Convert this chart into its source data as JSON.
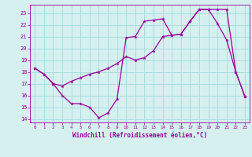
{
  "xlabel": "Windchill (Refroidissement éolien,°C)",
  "bg_color": "#d6f0f0",
  "line_color": "#990099",
  "grid_color": "#aadddd",
  "line1_x": [
    0,
    1,
    2,
    3,
    4,
    5,
    6,
    7,
    8,
    9,
    10,
    11,
    12,
    13,
    14,
    15,
    16,
    17,
    18,
    19,
    20,
    21,
    22,
    23
  ],
  "line1_y": [
    18.3,
    17.8,
    17.0,
    16.0,
    15.3,
    15.3,
    15.0,
    14.1,
    14.5,
    15.7,
    20.9,
    21.0,
    22.3,
    22.4,
    22.5,
    21.1,
    21.2,
    22.3,
    23.3,
    23.3,
    22.1,
    20.7,
    18.0,
    15.9
  ],
  "line2_x": [
    0,
    1,
    2,
    3,
    4,
    5,
    6,
    7,
    8,
    9,
    10,
    11,
    12,
    13,
    14,
    15,
    16,
    17,
    18,
    19,
    20,
    21,
    22,
    23
  ],
  "line2_y": [
    18.3,
    17.8,
    17.0,
    16.8,
    17.2,
    17.5,
    17.8,
    18.0,
    18.3,
    18.7,
    19.3,
    19.0,
    19.2,
    19.8,
    21.0,
    21.1,
    21.2,
    22.3,
    23.3,
    23.3,
    23.3,
    23.3,
    18.0,
    15.9
  ],
  "ylim_bottom": 13.7,
  "ylim_top": 23.7,
  "xlim_left": -0.5,
  "xlim_right": 23.5,
  "yticks": [
    14,
    15,
    16,
    17,
    18,
    19,
    20,
    21,
    22,
    23
  ],
  "xticks": [
    0,
    1,
    2,
    3,
    4,
    5,
    6,
    7,
    8,
    9,
    10,
    11,
    12,
    13,
    14,
    15,
    16,
    17,
    18,
    19,
    20,
    21,
    22,
    23
  ]
}
